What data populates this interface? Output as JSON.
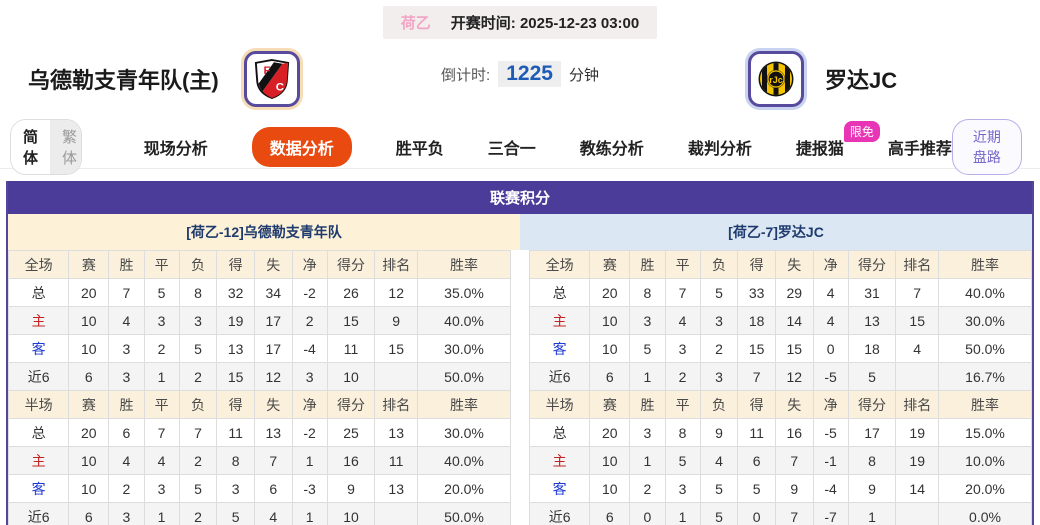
{
  "header": {
    "league_badge": "荷乙",
    "kickoff_label": "开赛时间:",
    "kickoff_time": "2025-12-23 03:00",
    "home_team": "乌德勒支青年队(主)",
    "away_team": "罗达JC",
    "countdown_label": "倒计时:",
    "countdown_value": "1225",
    "countdown_unit": "分钟"
  },
  "nav": {
    "lang_simplified": "简体",
    "lang_traditional": "繁体",
    "tabs": [
      {
        "label": "现场分析",
        "active": false
      },
      {
        "label": "数据分析",
        "active": true
      },
      {
        "label": "胜平负",
        "active": false
      },
      {
        "label": "三合一",
        "active": false
      },
      {
        "label": "教练分析",
        "active": false
      },
      {
        "label": "裁判分析",
        "active": false
      },
      {
        "label": "捷报猫",
        "active": false,
        "badge": "限免"
      },
      {
        "label": "高手推荐",
        "active": false
      }
    ],
    "recent_button": "近期盘路"
  },
  "table": {
    "title": "联赛积分",
    "sides": [
      {
        "id": "left",
        "team_header": "[荷乙-12]乌德勒支青年队",
        "sections": [
          {
            "columns": [
              "全场",
              "赛",
              "胜",
              "平",
              "负",
              "得",
              "失",
              "净",
              "得分",
              "排名",
              "胜率"
            ],
            "rows": [
              {
                "label": "总",
                "values": [
                  "20",
                  "7",
                  "5",
                  "8",
                  "32",
                  "34",
                  "-2",
                  "26",
                  "12",
                  "35.0%"
                ]
              },
              {
                "label": "主",
                "values": [
                  "10",
                  "4",
                  "3",
                  "3",
                  "19",
                  "17",
                  "2",
                  "15",
                  "9",
                  "40.0%"
                ]
              },
              {
                "label": "客",
                "values": [
                  "10",
                  "3",
                  "2",
                  "5",
                  "13",
                  "17",
                  "-4",
                  "11",
                  "15",
                  "30.0%"
                ]
              },
              {
                "label": "近6",
                "values": [
                  "6",
                  "3",
                  "1",
                  "2",
                  "15",
                  "12",
                  "3",
                  "10",
                  "",
                  "50.0%"
                ]
              }
            ]
          },
          {
            "columns": [
              "半场",
              "赛",
              "胜",
              "平",
              "负",
              "得",
              "失",
              "净",
              "得分",
              "排名",
              "胜率"
            ],
            "rows": [
              {
                "label": "总",
                "values": [
                  "20",
                  "6",
                  "7",
                  "7",
                  "11",
                  "13",
                  "-2",
                  "25",
                  "13",
                  "30.0%"
                ]
              },
              {
                "label": "主",
                "values": [
                  "10",
                  "4",
                  "4",
                  "2",
                  "8",
                  "7",
                  "1",
                  "16",
                  "11",
                  "40.0%"
                ]
              },
              {
                "label": "客",
                "values": [
                  "10",
                  "2",
                  "3",
                  "5",
                  "3",
                  "6",
                  "-3",
                  "9",
                  "13",
                  "20.0%"
                ]
              },
              {
                "label": "近6",
                "values": [
                  "6",
                  "3",
                  "1",
                  "2",
                  "5",
                  "4",
                  "1",
                  "10",
                  "",
                  "50.0%"
                ]
              }
            ]
          }
        ]
      },
      {
        "id": "right",
        "team_header": "[荷乙-7]罗达JC",
        "sections": [
          {
            "columns": [
              "全场",
              "赛",
              "胜",
              "平",
              "负",
              "得",
              "失",
              "净",
              "得分",
              "排名",
              "胜率"
            ],
            "rows": [
              {
                "label": "总",
                "values": [
                  "20",
                  "8",
                  "7",
                  "5",
                  "33",
                  "29",
                  "4",
                  "31",
                  "7",
                  "40.0%"
                ]
              },
              {
                "label": "主",
                "values": [
                  "10",
                  "3",
                  "4",
                  "3",
                  "18",
                  "14",
                  "4",
                  "13",
                  "15",
                  "30.0%"
                ]
              },
              {
                "label": "客",
                "values": [
                  "10",
                  "5",
                  "3",
                  "2",
                  "15",
                  "15",
                  "0",
                  "18",
                  "4",
                  "50.0%"
                ]
              },
              {
                "label": "近6",
                "values": [
                  "6",
                  "1",
                  "2",
                  "3",
                  "7",
                  "12",
                  "-5",
                  "5",
                  "",
                  "16.7%"
                ]
              }
            ]
          },
          {
            "columns": [
              "半场",
              "赛",
              "胜",
              "平",
              "负",
              "得",
              "失",
              "净",
              "得分",
              "排名",
              "胜率"
            ],
            "rows": [
              {
                "label": "总",
                "values": [
                  "20",
                  "3",
                  "8",
                  "9",
                  "11",
                  "16",
                  "-5",
                  "17",
                  "19",
                  "15.0%"
                ]
              },
              {
                "label": "主",
                "values": [
                  "10",
                  "1",
                  "5",
                  "4",
                  "6",
                  "7",
                  "-1",
                  "8",
                  "19",
                  "10.0%"
                ]
              },
              {
                "label": "客",
                "values": [
                  "10",
                  "2",
                  "3",
                  "5",
                  "5",
                  "9",
                  "-4",
                  "9",
                  "14",
                  "20.0%"
                ]
              },
              {
                "label": "近6",
                "values": [
                  "6",
                  "0",
                  "1",
                  "5",
                  "0",
                  "7",
                  "-7",
                  "1",
                  "",
                  "0.0%"
                ]
              }
            ]
          }
        ]
      }
    ]
  },
  "icons": {
    "home_logo": "fc-utrecht-crest",
    "away_logo": "roda-jc-crest"
  },
  "colors": {
    "accent_orange": "#e94a10",
    "header_purple": "#4b3c99",
    "block_border_purple": "#564699",
    "left_header_cream": "#fdf2d8",
    "right_header_blue": "#dbe7f2",
    "badge_magenta": "#e835b5",
    "league_pink": "#f2a6c5",
    "countdown_blue": "#1d5bb8",
    "home_row_red": "#c32222",
    "away_row_blue": "#1f3bd4"
  }
}
